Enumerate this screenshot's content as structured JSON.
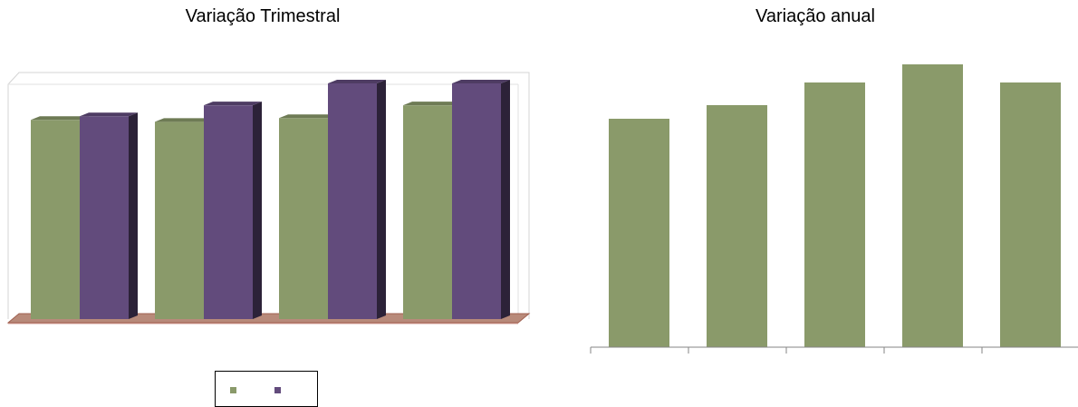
{
  "colors": {
    "green": "#8a9a6a",
    "purple": "#624b7c"
  },
  "chart_data": [
    {
      "type": "bar",
      "title": "Variação Trimestral",
      "categories": [
        "",
        "",
        "",
        ""
      ],
      "series": [
        {
          "values": [
            218,
            216,
            220,
            234
          ]
        },
        {
          "values": [
            222,
            234,
            258,
            258
          ]
        }
      ],
      "ylim": [
        0,
        258
      ],
      "grid": false,
      "legend": "bottom"
    },
    {
      "type": "bar",
      "title": "Variação anual",
      "categories": [
        "",
        "",
        "",
        "",
        ""
      ],
      "values": [
        252,
        267,
        292,
        312,
        292
      ],
      "ylim": [
        0,
        312
      ],
      "grid": false
    }
  ]
}
